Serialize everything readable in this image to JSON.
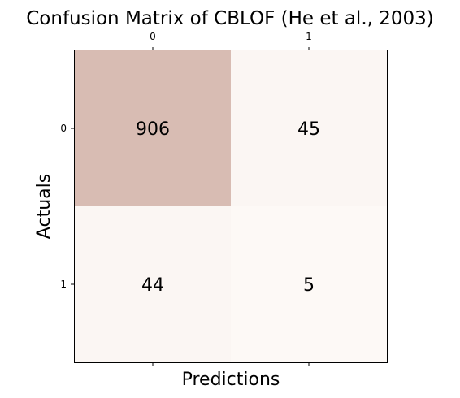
{
  "chart_data": {
    "type": "heatmap",
    "title": "Confusion Matrix of CBLOF (He et al., 2003)",
    "xlabel": "Predictions",
    "ylabel": "Actuals",
    "x_ticks": [
      "0",
      "1"
    ],
    "y_ticks": [
      "0",
      "1"
    ],
    "x_ticks_position": "top",
    "matrix": [
      [
        906,
        45
      ],
      [
        44,
        5
      ]
    ],
    "cell_labels": [
      [
        "906",
        "45"
      ],
      [
        "44",
        "5"
      ]
    ],
    "colormap_low": "#fdf9f6",
    "colormap_high": "#d8bcb3",
    "grid": false
  }
}
